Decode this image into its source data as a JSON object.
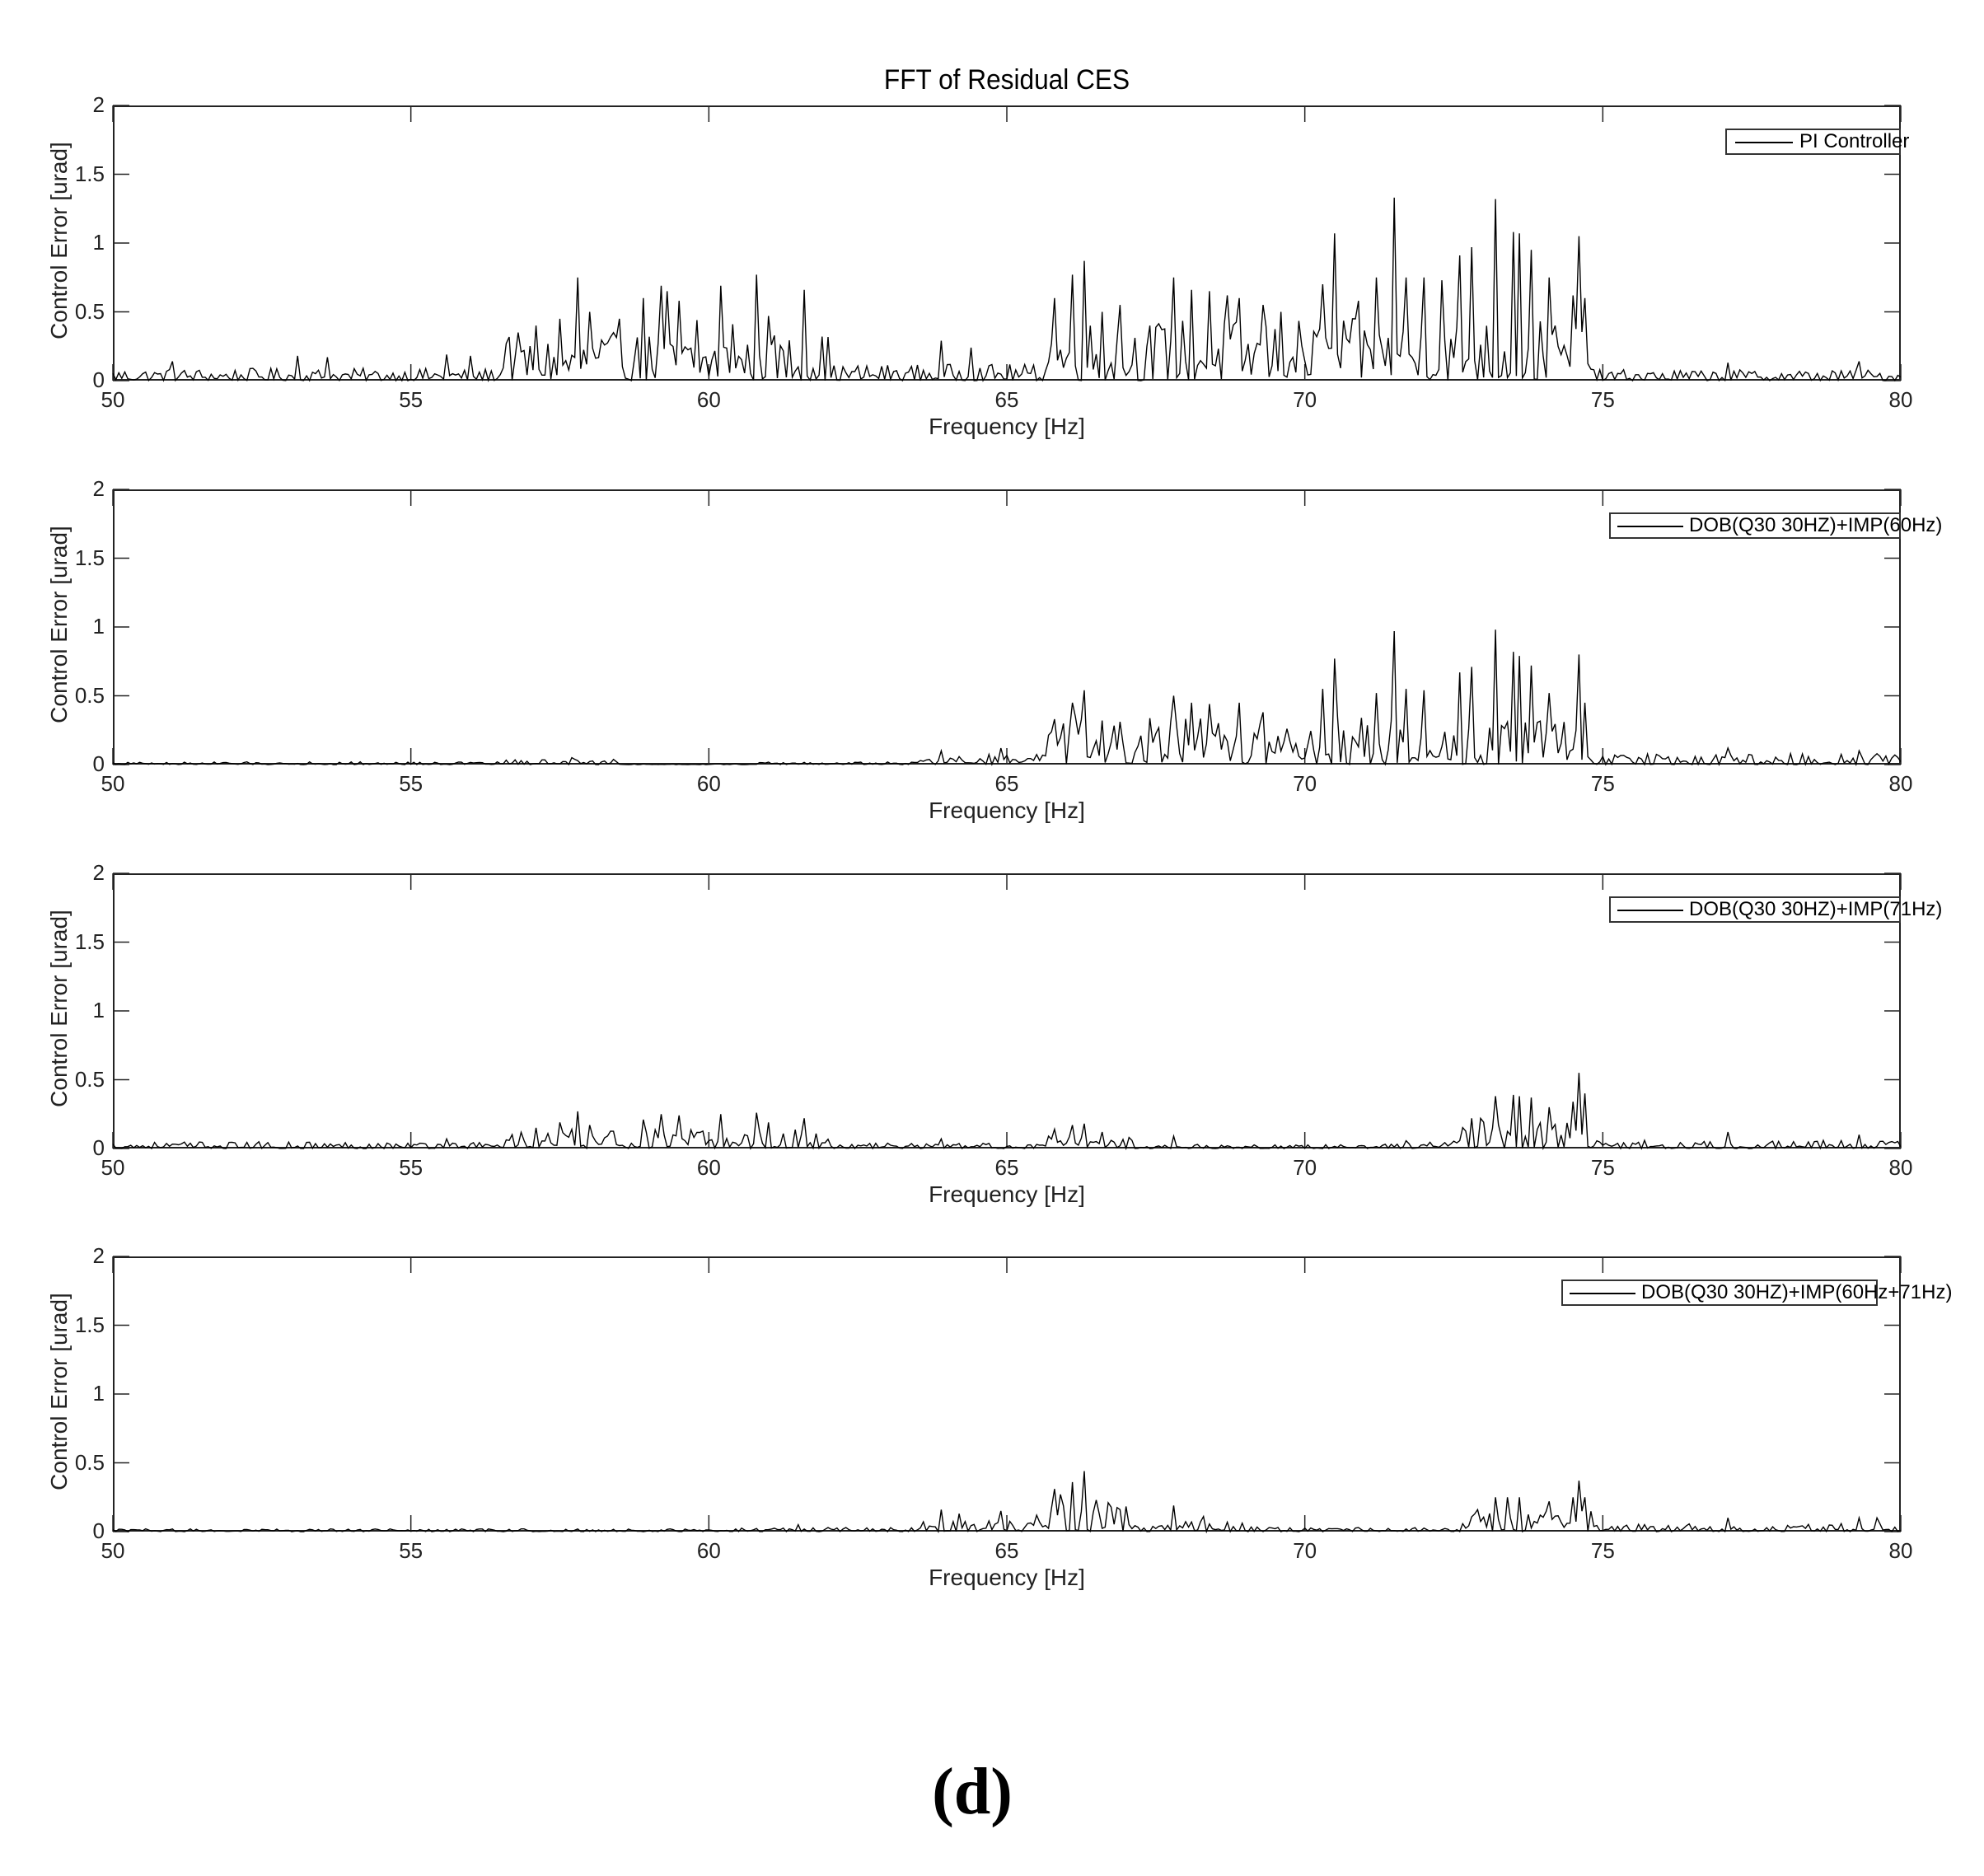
{
  "figure": {
    "title": "FFT of Residual CES",
    "subfigure_label": "(d)"
  },
  "axes_common": {
    "xlabel": "Frequency [Hz]",
    "ylabel": "Control Error [urad]",
    "xticks": [
      "50",
      "55",
      "60",
      "65",
      "70",
      "75",
      "80"
    ],
    "yticks": [
      "0",
      "0.5",
      "1",
      "1.5",
      "2"
    ],
    "line_color": "#000000"
  },
  "chart_data": [
    {
      "type": "line",
      "title": "FFT of Residual CES",
      "xlabel": "Frequency [Hz]",
      "ylabel": "Control Error [urad]",
      "xlim": [
        50,
        80
      ],
      "ylim": [
        0,
        2
      ],
      "grid": false,
      "legend_position": "top-right",
      "series": [
        {
          "name": "PI Controller",
          "noise_bands": [
            [
              50,
              56.5,
              0.09
            ],
            [
              56.5,
              62,
              0.35
            ],
            [
              62,
              65.6,
              0.12
            ],
            [
              65.6,
              74.8,
              0.45
            ],
            [
              74.8,
              80,
              0.08
            ]
          ],
          "peaks": [
            [
              51.0,
              0.14
            ],
            [
              53.1,
              0.18
            ],
            [
              53.6,
              0.17
            ],
            [
              55.6,
              0.19
            ],
            [
              56.0,
              0.18
            ],
            [
              56.6,
              0.27
            ],
            [
              57.1,
              0.4
            ],
            [
              57.5,
              0.45
            ],
            [
              57.8,
              0.75
            ],
            [
              58.0,
              0.5
            ],
            [
              58.5,
              0.45
            ],
            [
              58.9,
              0.6
            ],
            [
              59.2,
              0.69
            ],
            [
              59.3,
              0.65
            ],
            [
              59.5,
              0.58
            ],
            [
              59.8,
              0.44
            ],
            [
              60.2,
              0.69
            ],
            [
              60.4,
              0.41
            ],
            [
              60.8,
              0.77
            ],
            [
              61.0,
              0.47
            ],
            [
              61.6,
              0.66
            ],
            [
              62.0,
              0.27
            ],
            [
              63.9,
              0.29
            ],
            [
              64.4,
              0.24
            ],
            [
              65.8,
              0.6
            ],
            [
              66.1,
              0.77
            ],
            [
              66.3,
              0.87
            ],
            [
              66.6,
              0.5
            ],
            [
              66.9,
              0.55
            ],
            [
              67.8,
              0.75
            ],
            [
              68.1,
              0.66
            ],
            [
              68.4,
              0.65
            ],
            [
              68.7,
              0.62
            ],
            [
              68.9,
              0.6
            ],
            [
              69.3,
              0.55
            ],
            [
              69.6,
              0.5
            ],
            [
              70.3,
              0.7
            ],
            [
              70.5,
              1.07
            ],
            [
              70.9,
              0.58
            ],
            [
              71.2,
              0.75
            ],
            [
              71.5,
              1.33
            ],
            [
              71.7,
              0.75
            ],
            [
              72.0,
              0.75
            ],
            [
              72.3,
              0.73
            ],
            [
              72.6,
              0.91
            ],
            [
              72.8,
              0.97
            ],
            [
              73.2,
              1.32
            ],
            [
              73.5,
              1.08
            ],
            [
              73.6,
              1.07
            ],
            [
              73.8,
              0.95
            ],
            [
              74.1,
              0.75
            ],
            [
              74.5,
              0.62
            ],
            [
              74.6,
              1.05
            ],
            [
              74.7,
              0.6
            ],
            [
              77.1,
              0.13
            ],
            [
              79.3,
              0.14
            ]
          ]
        }
      ]
    },
    {
      "type": "line",
      "xlabel": "Frequency [Hz]",
      "ylabel": "Control Error [urad]",
      "xlim": [
        50,
        80
      ],
      "ylim": [
        0,
        2
      ],
      "grid": false,
      "legend_position": "top-right",
      "series": [
        {
          "name": "DOB(Q30 30HZ)+IMP(60Hz)",
          "noise_bands": [
            [
              50,
              56.5,
              0.02
            ],
            [
              56.5,
              58.5,
              0.04
            ],
            [
              58.5,
              60.7,
              0.005
            ],
            [
              60.7,
              63.5,
              0.02
            ],
            [
              63.5,
              65.6,
              0.08
            ],
            [
              65.6,
              74.8,
              0.35
            ],
            [
              74.8,
              80,
              0.08
            ]
          ],
          "peaks": [
            [
              57.7,
              0.05
            ],
            [
              63.9,
              0.1
            ],
            [
              64.9,
              0.12
            ],
            [
              65.8,
              0.33
            ],
            [
              66.1,
              0.45
            ],
            [
              66.3,
              0.54
            ],
            [
              66.6,
              0.32
            ],
            [
              67.8,
              0.5
            ],
            [
              68.1,
              0.45
            ],
            [
              68.4,
              0.44
            ],
            [
              68.9,
              0.45
            ],
            [
              69.3,
              0.38
            ],
            [
              70.3,
              0.55
            ],
            [
              70.5,
              0.77
            ],
            [
              71.2,
              0.52
            ],
            [
              71.5,
              0.97
            ],
            [
              71.7,
              0.55
            ],
            [
              72.0,
              0.54
            ],
            [
              72.6,
              0.67
            ],
            [
              72.8,
              0.71
            ],
            [
              73.2,
              0.98
            ],
            [
              73.5,
              0.82
            ],
            [
              73.6,
              0.79
            ],
            [
              73.8,
              0.72
            ],
            [
              74.1,
              0.52
            ],
            [
              74.6,
              0.8
            ],
            [
              74.7,
              0.45
            ],
            [
              77.1,
              0.12
            ],
            [
              79.3,
              0.1
            ]
          ]
        }
      ]
    },
    {
      "type": "line",
      "xlabel": "Frequency [Hz]",
      "ylabel": "Control Error [urad]",
      "xlim": [
        50,
        80
      ],
      "ylim": [
        0,
        2
      ],
      "grid": false,
      "legend_position": "top-right",
      "series": [
        {
          "name": "DOB(Q30 30HZ)+IMP(71Hz)",
          "noise_bands": [
            [
              50,
              56.5,
              0.05
            ],
            [
              56.5,
              62,
              0.14
            ],
            [
              62,
              65.6,
              0.04
            ],
            [
              65.6,
              67.2,
              0.09
            ],
            [
              67.2,
              71.3,
              0.03
            ],
            [
              71.3,
              72.6,
              0.06
            ],
            [
              72.6,
              74.8,
              0.22
            ],
            [
              74.8,
              80,
              0.06
            ]
          ],
          "peaks": [
            [
              55.6,
              0.07
            ],
            [
              57.1,
              0.15
            ],
            [
              57.5,
              0.19
            ],
            [
              57.8,
              0.27
            ],
            [
              58.0,
              0.17
            ],
            [
              58.9,
              0.21
            ],
            [
              59.2,
              0.25
            ],
            [
              59.5,
              0.24
            ],
            [
              60.2,
              0.25
            ],
            [
              60.8,
              0.26
            ],
            [
              61.0,
              0.19
            ],
            [
              61.6,
              0.22
            ],
            [
              63.9,
              0.07
            ],
            [
              65.8,
              0.14
            ],
            [
              66.1,
              0.17
            ],
            [
              66.3,
              0.18
            ],
            [
              66.6,
              0.12
            ],
            [
              67.8,
              0.09
            ],
            [
              72.8,
              0.22
            ],
            [
              73.2,
              0.38
            ],
            [
              73.5,
              0.39
            ],
            [
              73.6,
              0.38
            ],
            [
              73.8,
              0.37
            ],
            [
              74.1,
              0.3
            ],
            [
              74.5,
              0.34
            ],
            [
              74.6,
              0.55
            ],
            [
              74.7,
              0.4
            ],
            [
              77.1,
              0.12
            ],
            [
              79.3,
              0.1
            ]
          ]
        }
      ]
    },
    {
      "type": "line",
      "xlabel": "Frequency [Hz]",
      "ylabel": "Control Error [urad]",
      "xlim": [
        50,
        80
      ],
      "ylim": [
        0,
        2
      ],
      "grid": false,
      "legend_position": "top-right",
      "series": [
        {
          "name": "DOB(Q30 30HZ)+IMP(60Hz+71Hz)",
          "noise_bands": [
            [
              50,
              60.5,
              0.02
            ],
            [
              60.5,
              63.5,
              0.03
            ],
            [
              63.5,
              65.6,
              0.08
            ],
            [
              65.6,
              67.0,
              0.2
            ],
            [
              67.0,
              69.6,
              0.08
            ],
            [
              69.6,
              72.5,
              0.03
            ],
            [
              72.5,
              74.8,
              0.15
            ],
            [
              74.8,
              80,
              0.06
            ]
          ],
          "peaks": [
            [
              61.5,
              0.05
            ],
            [
              63.9,
              0.16
            ],
            [
              64.2,
              0.13
            ],
            [
              64.9,
              0.15
            ],
            [
              65.5,
              0.12
            ],
            [
              65.8,
              0.31
            ],
            [
              65.9,
              0.27
            ],
            [
              66.1,
              0.36
            ],
            [
              66.3,
              0.44
            ],
            [
              66.5,
              0.23
            ],
            [
              66.7,
              0.21
            ],
            [
              67.8,
              0.19
            ],
            [
              68.3,
              0.11
            ],
            [
              72.9,
              0.16
            ],
            [
              73.2,
              0.25
            ],
            [
              73.4,
              0.25
            ],
            [
              73.6,
              0.25
            ],
            [
              74.1,
              0.22
            ],
            [
              74.5,
              0.25
            ],
            [
              74.6,
              0.37
            ],
            [
              74.7,
              0.25
            ],
            [
              77.1,
              0.1
            ],
            [
              79.3,
              0.1
            ],
            [
              79.6,
              0.1
            ]
          ]
        }
      ]
    }
  ],
  "panels": [
    {
      "legend": "PI Controller"
    },
    {
      "legend": "DOB(Q30 30HZ)+IMP(60Hz)"
    },
    {
      "legend": "DOB(Q30 30HZ)+IMP(71Hz)"
    },
    {
      "legend": "DOB(Q30 30HZ)+IMP(60Hz+71Hz)"
    }
  ]
}
